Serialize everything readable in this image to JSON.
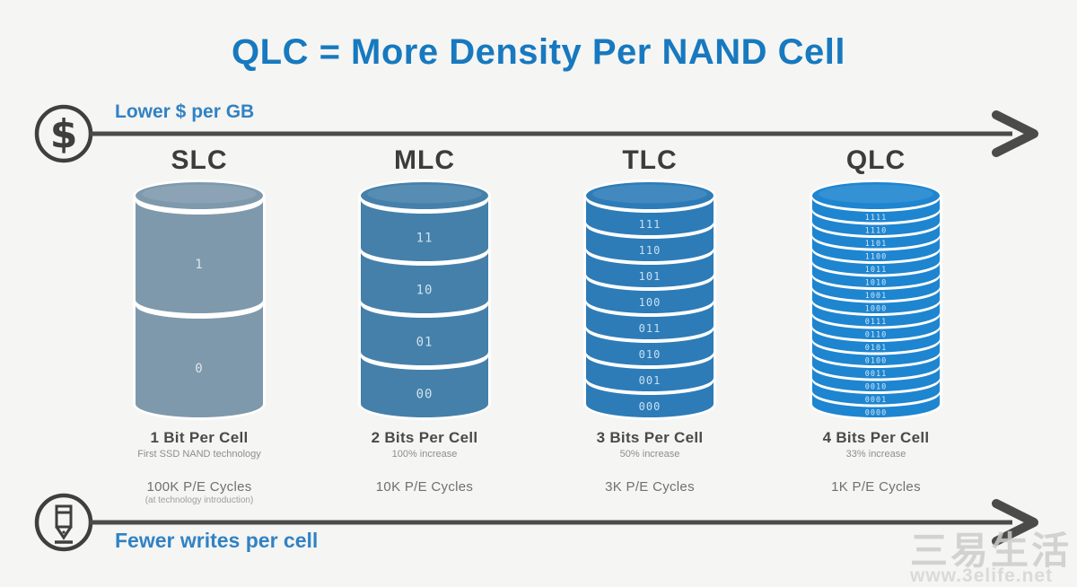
{
  "title": "QLC = More Density Per NAND Cell",
  "top_axis": {
    "label": "Lower $ per GB",
    "icon": "dollar"
  },
  "bottom_axis": {
    "label": "Fewer writes per cell",
    "icon": "pencil"
  },
  "columns": [
    {
      "name": "SLC",
      "color": "#7e99ac",
      "label_color": "#dde6ec",
      "segments": [
        "1",
        "0"
      ],
      "caption": "1 Bit Per Cell",
      "subcaption": "First SSD NAND technology",
      "cycles": "100K P/E Cycles",
      "cycles_note": "(at technology introduction)"
    },
    {
      "name": "MLC",
      "color": "#4580aa",
      "label_color": "#cfe2ef",
      "segments": [
        "11",
        "10",
        "01",
        "00"
      ],
      "caption": "2 Bits Per Cell",
      "subcaption": "100% increase",
      "cycles": "10K P/E Cycles",
      "cycles_note": ""
    },
    {
      "name": "TLC",
      "color": "#2d7cb8",
      "label_color": "#c8e0f2",
      "segments": [
        "111",
        "110",
        "101",
        "100",
        "011",
        "010",
        "001",
        "000"
      ],
      "caption": "3 Bits Per Cell",
      "subcaption": "50% increase",
      "cycles": "3K P/E Cycles",
      "cycles_note": ""
    },
    {
      "name": "QLC",
      "color": "#1e85d0",
      "label_color": "#cfe7f8",
      "segments": [
        "1111",
        "1110",
        "1101",
        "1100",
        "1011",
        "1010",
        "1001",
        "1000",
        "0111",
        "0110",
        "0101",
        "0100",
        "0011",
        "0010",
        "0001",
        "0000"
      ],
      "caption": "4 Bits Per Cell",
      "subcaption": "33% increase",
      "cycles": "1K P/E Cycles",
      "cycles_note": ""
    }
  ],
  "watermark": {
    "line1": "三易生活",
    "line2": "www.3elife.net"
  },
  "colors": {
    "title": "#1779bf",
    "axis_label": "#3182c4",
    "arrow": "#4b4b4b",
    "icon_stroke": "#3f3f3f",
    "heading": "#3c3c3c",
    "caption": "#4a4a4a",
    "muted": "#8e8e8e"
  }
}
